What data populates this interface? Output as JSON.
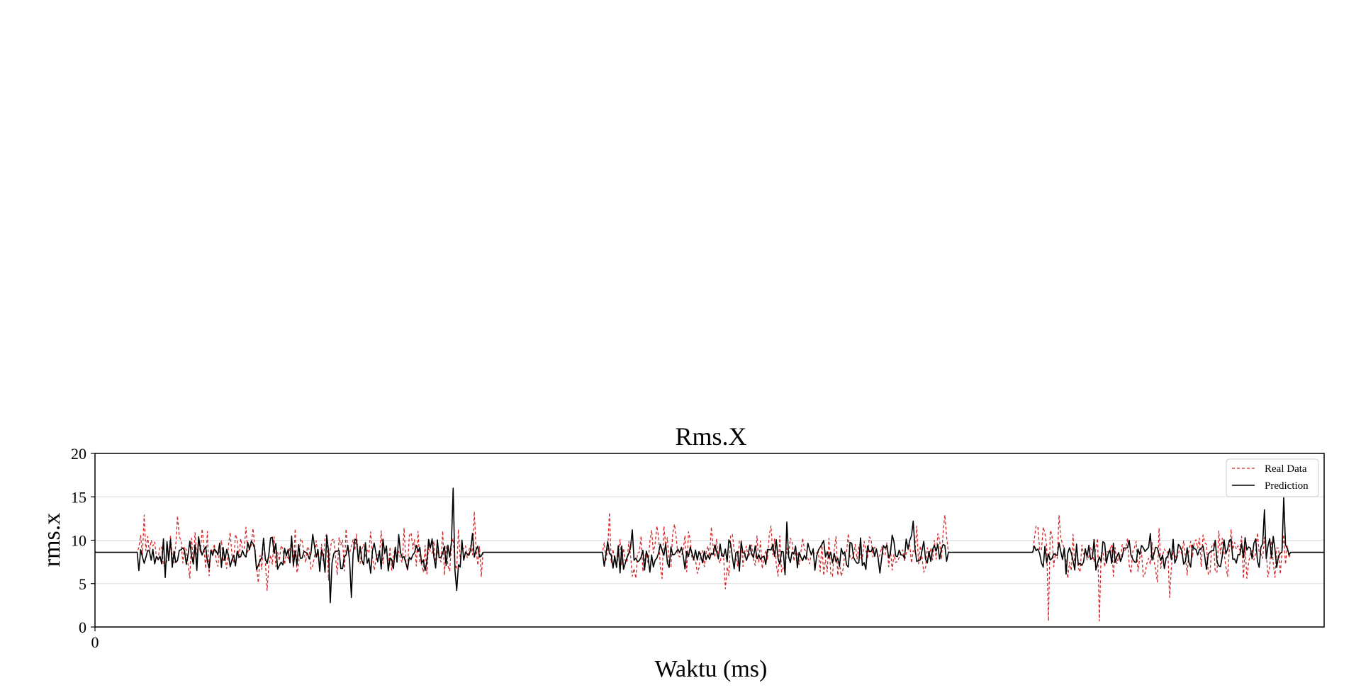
{
  "chart_data": {
    "type": "line",
    "title": "Rms.X",
    "xlabel": "Waktu (ms)",
    "ylabel": "rms.x",
    "ylim": [
      0,
      20
    ],
    "xlim": [
      0,
      2800
    ],
    "y_ticks": [
      "0",
      "5",
      "10",
      "15",
      "20"
    ],
    "x_ticks": [
      "0"
    ],
    "grid": "horizontal",
    "legend_position": "top-right",
    "baseline_value": 8.6,
    "segments": [
      {
        "x_start": 100,
        "x_end": 880
      },
      {
        "x_start": 1160,
        "x_end": 1940
      },
      {
        "x_start": 2140,
        "x_end": 2720
      }
    ],
    "spikes": [
      {
        "series": "Prediction",
        "x": 162,
        "y": 5.7
      },
      {
        "series": "Real Data",
        "x": 112,
        "y": 12.9
      },
      {
        "series": "Real Data",
        "x": 188,
        "y": 12.8
      },
      {
        "series": "Real Data",
        "x": 392,
        "y": 4.2
      },
      {
        "series": "Prediction",
        "x": 535,
        "y": 2.8
      },
      {
        "series": "Prediction",
        "x": 585,
        "y": 3.4
      },
      {
        "series": "Prediction",
        "x": 815,
        "y": 16.0
      },
      {
        "series": "Prediction",
        "x": 825,
        "y": 4.2
      },
      {
        "series": "Real Data",
        "x": 865,
        "y": 13.3
      },
      {
        "series": "Real Data",
        "x": 1172,
        "y": 13.2
      },
      {
        "series": "Prediction",
        "x": 1225,
        "y": 11.2
      },
      {
        "series": "Real Data",
        "x": 1435,
        "y": 4.4
      },
      {
        "series": "Prediction",
        "x": 1575,
        "y": 12.1
      },
      {
        "series": "Prediction",
        "x": 1865,
        "y": 12.2
      },
      {
        "series": "Real Data",
        "x": 1935,
        "y": 12.9
      },
      {
        "series": "Real Data",
        "x": 2172,
        "y": 0.7
      },
      {
        "series": "Real Data",
        "x": 2195,
        "y": 12.9
      },
      {
        "series": "Real Data",
        "x": 2290,
        "y": 0.7
      },
      {
        "series": "Real Data",
        "x": 2450,
        "y": 3.4
      },
      {
        "series": "Prediction",
        "x": 2665,
        "y": 13.5
      },
      {
        "series": "Prediction",
        "x": 2710,
        "y": 14.9
      }
    ],
    "series": [
      {
        "name": "Real Data",
        "color": "#d62728",
        "style": "dashed",
        "mean": 8.6,
        "spread": 2.6,
        "seed": 7
      },
      {
        "name": "Prediction",
        "color": "#000000",
        "style": "solid",
        "mean": 8.4,
        "spread": 1.8,
        "seed": 19
      }
    ]
  }
}
